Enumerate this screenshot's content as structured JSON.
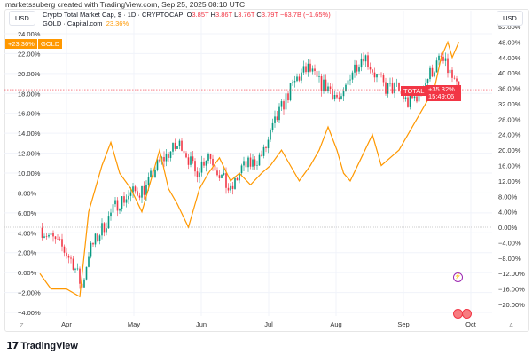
{
  "credit": "marketssuberg created with TradingView.com, Sep 25, 2025 08:10 UTC",
  "legend": {
    "main_title": "Crypto Total Market Cap, $ · 1D · CRYPTOCAP",
    "o_label": "O",
    "o": "3.85T",
    "h_label": "H",
    "h": "3.86T",
    "l_label": "L",
    "l": "3.76T",
    "c_label": "C",
    "c": "3.79T",
    "change": "−63.7B (−1.65%)",
    "gold_title": "GOLD · Capital.com",
    "gold_value": "23.36%"
  },
  "left_currency": "USD",
  "right_currency": "USD",
  "left_tag": {
    "value": "+23.36%",
    "label": "GOLD"
  },
  "right_tag": {
    "label": "TOTAL",
    "value": "+35.32%",
    "time": "15:49:06"
  },
  "footer": {
    "brand": "TradingView",
    "z_button": "Z",
    "a_button": "A"
  },
  "colors": {
    "up": "#089981",
    "down": "#f23645",
    "gold": "#ff9800"
  },
  "chart_data": {
    "type": "candlestick+line",
    "x_ticks": [
      "Apr",
      "May",
      "Jun",
      "Jul",
      "Aug",
      "Sep",
      "Oct"
    ],
    "left_axis": {
      "labels": [
        "24.00%",
        "22.00%",
        "20.00%",
        "18.00%",
        "16.00%",
        "14.00%",
        "12.00%",
        "10.00%",
        "8.00%",
        "6.00%",
        "4.00%",
        "2.00%",
        "0.00%",
        "−2.00%",
        "−4.00%"
      ],
      "range": [
        -4,
        24
      ]
    },
    "right_axis": {
      "labels": [
        "52.00%",
        "48.00%",
        "44.00%",
        "40.00%",
        "36.00%",
        "32.00%",
        "28.00%",
        "24.00%",
        "20.00%",
        "16.00%",
        "12.00%",
        "8.00%",
        "4.00%",
        "0.00%",
        "−4.00%",
        "−8.00%",
        "−12.00%",
        "−16.00%",
        "−20.00%"
      ],
      "range": [
        -20,
        52
      ]
    },
    "crypto_total_keypoints_day_pct": [
      [
        0,
        4.5
      ],
      [
        5,
        3.5
      ],
      [
        10,
        2.5
      ],
      [
        15,
        1
      ],
      [
        19,
        -1.5
      ],
      [
        22,
        2
      ],
      [
        27,
        4
      ],
      [
        35,
        7
      ],
      [
        42,
        8
      ],
      [
        48,
        8.5
      ],
      [
        52,
        10.5
      ],
      [
        58,
        12
      ],
      [
        64,
        13
      ],
      [
        70,
        10
      ],
      [
        76,
        12
      ],
      [
        81,
        10
      ],
      [
        86,
        8
      ],
      [
        91,
        10.5
      ],
      [
        96,
        11
      ],
      [
        101,
        12
      ],
      [
        106,
        15
      ],
      [
        111,
        17.5
      ],
      [
        116,
        19.5
      ],
      [
        121,
        20.5
      ],
      [
        126,
        19
      ],
      [
        131,
        18.5
      ],
      [
        136,
        17
      ],
      [
        140,
        20
      ],
      [
        146,
        22
      ],
      [
        151,
        20
      ],
      [
        156,
        18.5
      ],
      [
        161,
        18.5
      ],
      [
        166,
        17
      ],
      [
        171,
        18
      ],
      [
        176,
        20
      ],
      [
        181,
        21.5
      ],
      [
        185,
        20
      ],
      [
        189,
        18
      ]
    ],
    "gold_keypoints_day_pct": [
      [
        0,
        -12
      ],
      [
        5,
        -16
      ],
      [
        12,
        -16
      ],
      [
        18,
        -18
      ],
      [
        22,
        4
      ],
      [
        25,
        10
      ],
      [
        28,
        16
      ],
      [
        32,
        22
      ],
      [
        36,
        14
      ],
      [
        41,
        10
      ],
      [
        46,
        4
      ],
      [
        50,
        12
      ],
      [
        54,
        20
      ],
      [
        58,
        10
      ],
      [
        62,
        6
      ],
      [
        67,
        0
      ],
      [
        72,
        10
      ],
      [
        76,
        14
      ],
      [
        81,
        18
      ],
      [
        86,
        12
      ],
      [
        90,
        14
      ],
      [
        95,
        11
      ],
      [
        100,
        14
      ],
      [
        104,
        16
      ],
      [
        109,
        20
      ],
      [
        113,
        16
      ],
      [
        117,
        12
      ],
      [
        122,
        16
      ],
      [
        126,
        20
      ],
      [
        130,
        26
      ],
      [
        134,
        20
      ],
      [
        137,
        14
      ],
      [
        140,
        12
      ],
      [
        145,
        18
      ],
      [
        150,
        24
      ],
      [
        154,
        16
      ],
      [
        158,
        18
      ],
      [
        162,
        20
      ],
      [
        166,
        24
      ],
      [
        170,
        28
      ],
      [
        174,
        32
      ],
      [
        178,
        36
      ],
      [
        181,
        44
      ],
      [
        184,
        48
      ],
      [
        186,
        44
      ],
      [
        189,
        48
      ]
    ]
  }
}
